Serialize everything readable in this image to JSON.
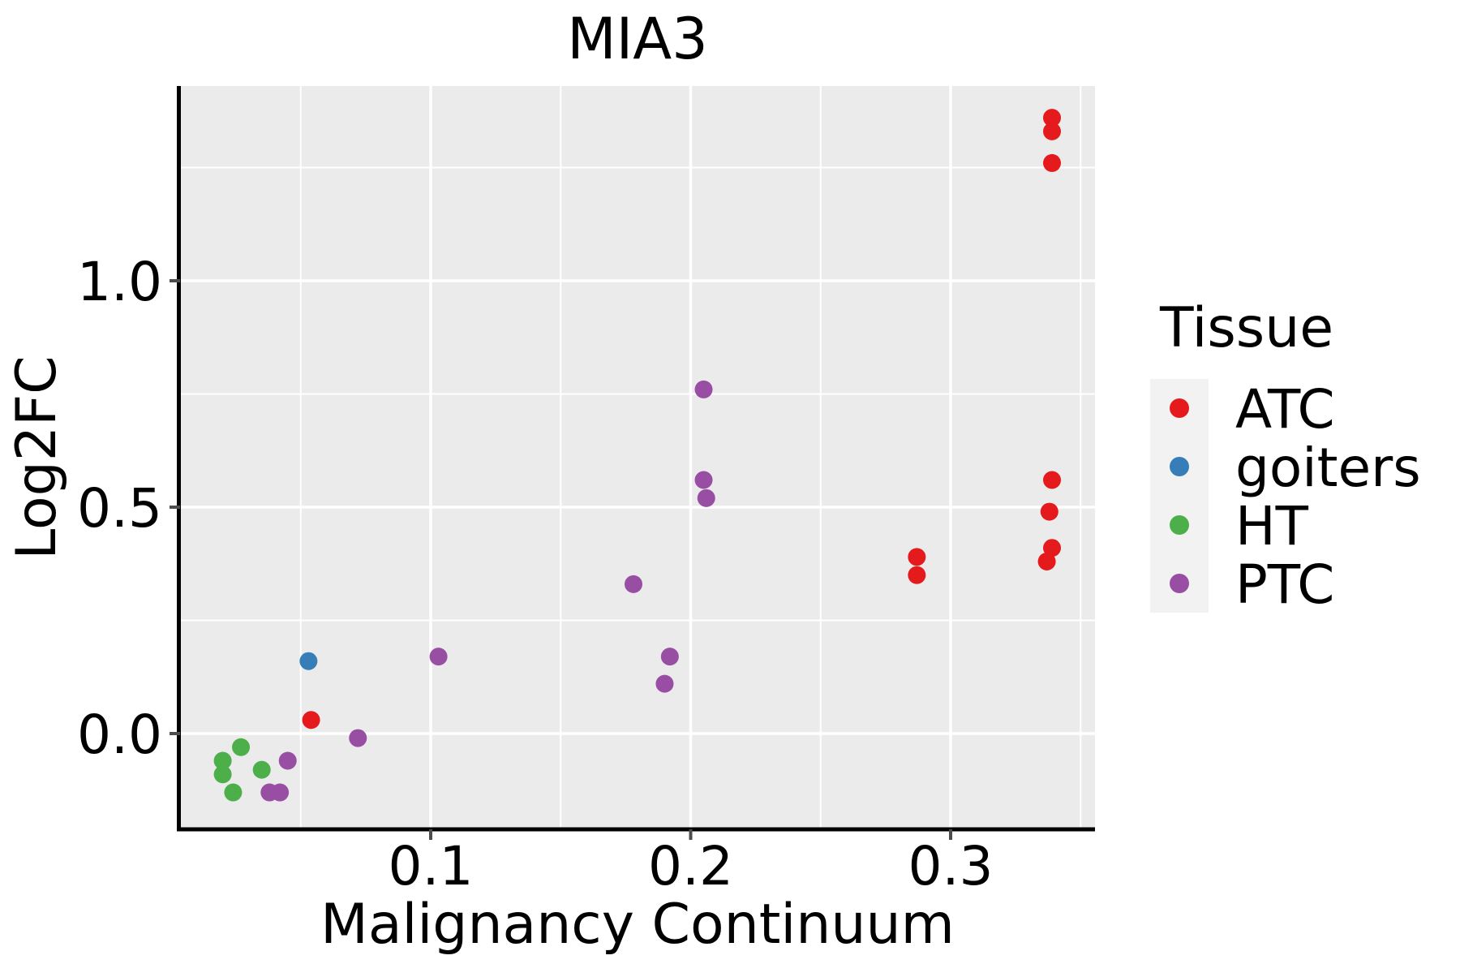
{
  "title": "MIA3",
  "axes": {
    "x": {
      "label": "Malignancy Continuum",
      "tick_labels": [
        "0.1",
        "0.2",
        "0.3"
      ]
    },
    "y": {
      "label": "Log2FC",
      "tick_labels": [
        "0.0",
        "0.5",
        "1.0"
      ]
    }
  },
  "legend": {
    "title": "Tissue",
    "entries": [
      {
        "label": "ATC",
        "color": "#E41A1C"
      },
      {
        "label": "goiters",
        "color": "#377EB8"
      },
      {
        "label": "HT",
        "color": "#4DAF4A"
      },
      {
        "label": "PTC",
        "color": "#984EA3"
      }
    ]
  },
  "colors": {
    "panel_background": "#EBEBEB",
    "gridline": "#FFFFFF",
    "legend_key_background": "#F2F2F2",
    "axis_line": "#000000",
    "tick_mark": "#4D4D4D"
  },
  "chart_data": {
    "type": "scatter",
    "title": "MIA3",
    "xlabel": "Malignancy Continuum",
    "ylabel": "Log2FC",
    "x_ticks": [
      0.1,
      0.2,
      0.3
    ],
    "x_minor_ticks": [
      0.05,
      0.15,
      0.25,
      0.35
    ],
    "y_ticks": [
      0.0,
      0.5,
      1.0
    ],
    "y_minor_ticks": [
      0.25,
      0.75,
      1.25
    ],
    "xlim": [
      0.004,
      0.356
    ],
    "ylim": [
      -0.21,
      1.43
    ],
    "grid": true,
    "legend_position": "right",
    "series": [
      {
        "name": "ATC",
        "color": "#E41A1C",
        "points": [
          [
            0.339,
            1.36
          ],
          [
            0.339,
            1.33
          ],
          [
            0.339,
            1.26
          ],
          [
            0.339,
            0.56
          ],
          [
            0.338,
            0.49
          ],
          [
            0.339,
            0.41
          ],
          [
            0.337,
            0.38
          ],
          [
            0.287,
            0.39
          ],
          [
            0.287,
            0.35
          ],
          [
            0.054,
            0.03
          ]
        ]
      },
      {
        "name": "goiters",
        "color": "#377EB8",
        "points": [
          [
            0.053,
            0.16
          ]
        ]
      },
      {
        "name": "HT",
        "color": "#4DAF4A",
        "points": [
          [
            0.027,
            -0.03
          ],
          [
            0.02,
            -0.06
          ],
          [
            0.02,
            -0.09
          ],
          [
            0.035,
            -0.08
          ],
          [
            0.024,
            -0.13
          ]
        ]
      },
      {
        "name": "PTC",
        "color": "#984EA3",
        "points": [
          [
            0.205,
            0.76
          ],
          [
            0.205,
            0.56
          ],
          [
            0.206,
            0.52
          ],
          [
            0.178,
            0.33
          ],
          [
            0.192,
            0.17
          ],
          [
            0.19,
            0.11
          ],
          [
            0.103,
            0.17
          ],
          [
            0.072,
            -0.01
          ],
          [
            0.045,
            -0.06
          ],
          [
            0.038,
            -0.13
          ],
          [
            0.042,
            -0.13
          ]
        ]
      }
    ]
  }
}
